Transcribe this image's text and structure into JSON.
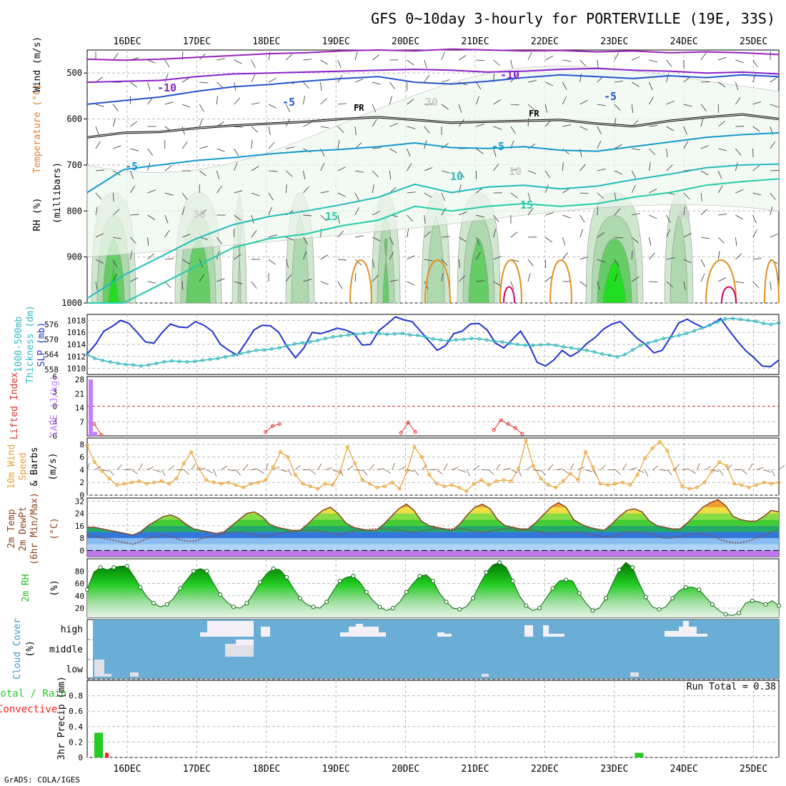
{
  "title": "GFS 0~10day 3-hourly for PORTERVILLE (19E, 33S)",
  "footer": "GrADS: COLA/IGES",
  "colors": {
    "grid": "#bbbbbb",
    "slp": "#2233cc",
    "thickness": "#33b8c0",
    "cape": "#c77dff",
    "lifted_index": "#e03030",
    "wind": "#e8a030",
    "rh": "#22bb22",
    "cloud_bg": "#6aaed6",
    "precip_total": "#22cc22",
    "precip_conv": "#ff2020"
  },
  "chart_data": [
    {
      "type": "line",
      "name": "upper-air",
      "x_dates": [
        "16DEC",
        "17DEC",
        "18DEC",
        "19DEC",
        "20DEC",
        "21DEC",
        "22DEC",
        "23DEC",
        "24DEC",
        "25DEC"
      ],
      "ylabel_parts": [
        "RH (%)",
        "Temperature (°C)",
        "Wind (m/s)",
        "(millibars)"
      ],
      "y_ticks": [
        "500",
        "600",
        "700",
        "800",
        "900",
        "1000"
      ],
      "ylim": [
        1000,
        450
      ],
      "isotherms": [
        {
          "label": "-10",
          "pressure": [
            470,
            472,
            470,
            466,
            462,
            458,
            456,
            452,
            450,
            452,
            448,
            450,
            452,
            451,
            454,
            452,
            456,
            454,
            456,
            460
          ]
        },
        {
          "label": "-10",
          "pressure": [
            520,
            518,
            516,
            508,
            502,
            500,
            498,
            496,
            494,
            492,
            494,
            498,
            496,
            492,
            490,
            494,
            496,
            500,
            498,
            502
          ]
        },
        {
          "label": "-5",
          "pressure": [
            568,
            560,
            552,
            540,
            530,
            525,
            518,
            512,
            508,
            520,
            524,
            518,
            510,
            504,
            508,
            512,
            506,
            510,
            504,
            508
          ]
        },
        {
          "label": "FR",
          "pressure": [
            640,
            630,
            628,
            620,
            614,
            610,
            606,
            600,
            596,
            602,
            608,
            606,
            604,
            602,
            610,
            616,
            604,
            596,
            590,
            600
          ]
        },
        {
          "label": "-5",
          "pressure": [
            760,
            710,
            700,
            690,
            684,
            676,
            670,
            666,
            660,
            652,
            662,
            664,
            660,
            668,
            670,
            660,
            650,
            640,
            634,
            630
          ]
        },
        {
          "label": "10",
          "pressure": [
            990,
            940,
            900,
            860,
            830,
            812,
            800,
            786,
            770,
            742,
            760,
            748,
            744,
            752,
            746,
            732,
            720,
            706,
            700,
            698
          ]
        },
        {
          "label": "15",
          "pressure": [
            1000,
            1000,
            960,
            920,
            880,
            860,
            850,
            832,
            820,
            790,
            800,
            790,
            784,
            790,
            784,
            770,
            760,
            744,
            736,
            730
          ]
        }
      ],
      "labels_shown": [
        "-10",
        "-10",
        "-5",
        "-5",
        "FR",
        "FR",
        "-5",
        "-5",
        "10",
        "10",
        "15",
        "15",
        "30",
        "30",
        "30"
      ]
    },
    {
      "type": "line",
      "name": "slp-thickness",
      "ylabel_parts": [
        "1000-500mb",
        "Thickness (dm)",
        "SLP (mb)"
      ],
      "left_ticks": [
        "558",
        "564",
        "570",
        "576"
      ],
      "right_ticks": [
        "1010",
        "1012",
        "1014",
        "1016",
        "1018"
      ],
      "series": [
        {
          "name": "SLP (mb)",
          "values": [
            1012.4,
            1014.0,
            1016.2,
            1017.0,
            1018.0,
            1017.5,
            1016.0,
            1014.4,
            1014.2,
            1016.0,
            1017.4,
            1016.9,
            1016.8,
            1017.8,
            1017.2,
            1016.2,
            1014.0,
            1013.0,
            1012.2,
            1014.2,
            1016.4,
            1017.2,
            1017.1,
            1016.0,
            1013.6,
            1011.8,
            1013.4,
            1016.0,
            1015.8,
            1016.2,
            1016.7,
            1016.4,
            1015.8,
            1013.9,
            1014.0,
            1016.3,
            1017.4,
            1018.6,
            1018.1,
            1017.8,
            1016.2,
            1014.6,
            1013.0,
            1013.8,
            1015.8,
            1016.2,
            1017.4,
            1017.5,
            1016.4,
            1014.2,
            1013.4,
            1014.8,
            1016.2,
            1014.0,
            1011.0,
            1010.4,
            1011.4,
            1013.0,
            1012.0,
            1012.8,
            1014.2,
            1015.2,
            1016.6,
            1017.4,
            1017.8,
            1016.4,
            1015.0,
            1014.0,
            1012.6,
            1013.0,
            1015.2,
            1017.6,
            1018.2,
            1017.4,
            1016.8,
            1017.4,
            1018.3,
            1016.4,
            1014.6,
            1013.0,
            1011.8,
            1010.4,
            1010.3,
            1011.4
          ]
        },
        {
          "name": "Thickness (dm)",
          "values": [
            564.0,
            562.4,
            561.6,
            561.0,
            560.4,
            560.0,
            559.8,
            559.4,
            559.8,
            560.4,
            561.0,
            561.4,
            561.2,
            561.0,
            561.2,
            561.6,
            562.0,
            562.4,
            563.0,
            563.6,
            564.4,
            565.0,
            565.6,
            565.8,
            566.2,
            566.6,
            567.4,
            568.2,
            568.6,
            569.0,
            569.6,
            570.4,
            571.0,
            571.4,
            571.8,
            572.0,
            572.4,
            572.8,
            572.4,
            572.0,
            572.2,
            572.4,
            571.8,
            571.6,
            571.0,
            570.2,
            569.8,
            569.4,
            569.8,
            570.0,
            570.4,
            570.2,
            569.8,
            569.2,
            569.0,
            568.4,
            568.0,
            567.6,
            567.6,
            567.8,
            568.0,
            567.6,
            567.0,
            566.6,
            566.0,
            565.6,
            565.0,
            564.2,
            563.6,
            563.0,
            564.0,
            565.8,
            567.6,
            568.6,
            569.4,
            570.4,
            571.0,
            571.6,
            572.4,
            573.4,
            574.6,
            575.6,
            577.0,
            578.2,
            578.4,
            578.0,
            577.6,
            577.2,
            576.4,
            576.0,
            576.6
          ]
        }
      ]
    },
    {
      "type": "bar",
      "name": "cape-li",
      "ylabel_parts": [
        "CAPE (J/kg)",
        "Lifted Index"
      ],
      "cape_ticks": [
        "7",
        "14",
        "21",
        "28"
      ],
      "li_ticks": [
        "6",
        "3",
        "0",
        "-3",
        "-6"
      ],
      "series": [
        {
          "name": "CAPE (J/kg)",
          "values": [
            28,
            2,
            0,
            0,
            0,
            0,
            0,
            0,
            0,
            0,
            0,
            0,
            0,
            0,
            0,
            0,
            0,
            0,
            0,
            0,
            0,
            0,
            0,
            0,
            0,
            0,
            0,
            0,
            0,
            0,
            0,
            0,
            0,
            0,
            0,
            0,
            0,
            0,
            0,
            0,
            0,
            0,
            0,
            0,
            0,
            0,
            0,
            0,
            0,
            0,
            0,
            0,
            0,
            0,
            0,
            0,
            0,
            0,
            0,
            0,
            0,
            0,
            0,
            0,
            0,
            0,
            0,
            0,
            0,
            0,
            0,
            0,
            0,
            0,
            0,
            0,
            0,
            0,
            0,
            0,
            0
          ]
        },
        {
          "name": "Lifted Index",
          "values": [
            null,
            3.6,
            5.8,
            null,
            null,
            null,
            null,
            null,
            null,
            null,
            null,
            null,
            null,
            null,
            null,
            null,
            null,
            null,
            null,
            null,
            null,
            null,
            null,
            null,
            null,
            5.2,
            4.0,
            3.6,
            null,
            null,
            null,
            null,
            null,
            null,
            null,
            null,
            null,
            null,
            null,
            null,
            null,
            null,
            null,
            null,
            5.4,
            3.3,
            5.2,
            null,
            null,
            null,
            null,
            null,
            null,
            null,
            null,
            null,
            null,
            4.8,
            2.8,
            3.6,
            4.4,
            5.6
          ]
        }
      ]
    },
    {
      "type": "line",
      "name": "wind10m",
      "ylabel_parts": [
        "10m Wind",
        "Speed",
        "& Barbs",
        "(m/s)"
      ],
      "y_ticks": [
        "0",
        "2",
        "4",
        "6",
        "8"
      ],
      "series": [
        {
          "name": "10m Wind Speed (m/s)",
          "values": [
            7.8,
            5.2,
            3.8,
            2.6,
            1.6,
            1.8,
            2.0,
            2.2,
            1.8,
            2.0,
            2.2,
            1.8,
            2.6,
            5.0,
            6.8,
            4.2,
            2.4,
            2.0,
            1.8,
            2.0,
            1.6,
            1.2,
            1.8,
            2.0,
            2.4,
            4.4,
            6.8,
            6.0,
            3.2,
            1.8,
            1.4,
            1.0,
            1.8,
            1.6,
            3.6,
            7.6,
            5.0,
            2.4,
            1.8,
            1.2,
            1.4,
            2.0,
            1.0,
            3.8,
            7.6,
            6.0,
            3.2,
            1.8,
            1.4,
            1.6,
            1.2,
            0.6,
            1.8,
            2.4,
            1.6,
            2.2,
            2.4,
            2.2,
            4.2,
            8.6,
            4.6,
            2.6,
            1.6,
            1.2,
            2.2,
            3.4,
            2.4,
            6.8,
            4.4,
            1.8,
            1.6,
            1.8,
            2.0,
            1.6,
            3.2,
            5.8,
            7.4,
            8.4,
            7.0,
            4.0,
            1.4,
            1.0,
            1.2,
            2.0,
            3.8,
            5.2,
            4.6,
            1.8,
            1.6,
            1.2,
            1.6,
            2.0,
            1.8,
            2.0
          ]
        }
      ]
    },
    {
      "type": "area",
      "name": "temp2m",
      "ylabel_parts": [
        "2m Temp",
        "2m DewPt",
        "(6hr Min/Max)",
        "(°C)"
      ],
      "y_ticks": [
        "0",
        "8",
        "16",
        "24",
        "32"
      ],
      "series": [
        {
          "name": "2m Temp (°C)",
          "values": [
            15,
            15,
            14,
            13,
            12,
            11,
            10,
            12,
            16,
            19,
            22,
            23,
            21,
            17,
            14,
            13,
            12,
            11,
            12,
            16,
            20,
            24,
            25,
            22,
            17,
            15,
            14,
            13,
            13,
            17,
            22,
            26,
            28,
            24,
            18,
            15,
            14,
            13,
            13,
            17,
            22,
            27,
            30,
            26,
            19,
            16,
            15,
            14,
            13,
            17,
            23,
            28,
            30,
            27,
            20,
            16,
            15,
            14,
            14,
            18,
            23,
            28,
            31,
            28,
            20,
            17,
            15,
            14,
            13,
            17,
            22,
            26,
            27,
            25,
            19,
            16,
            15,
            14,
            14,
            18,
            23,
            28,
            31,
            33,
            29,
            22,
            20,
            19,
            19,
            22,
            26,
            25
          ]
        },
        {
          "name": "2m DewPt (°C)",
          "values": [
            10,
            9,
            8,
            7,
            6,
            5,
            4,
            6,
            8,
            9,
            10,
            9,
            7,
            6,
            6,
            8,
            9,
            10,
            11,
            12,
            12,
            11,
            10,
            9,
            10,
            11,
            12,
            12,
            13,
            13,
            13,
            12,
            11,
            10,
            12,
            13,
            13,
            14,
            14,
            14,
            13,
            13,
            12,
            12,
            13,
            14,
            14,
            14,
            14,
            14,
            13,
            12,
            12,
            13,
            14,
            14,
            13,
            13,
            13,
            12,
            11,
            11,
            12,
            12,
            12,
            11,
            10,
            9,
            9,
            10,
            12,
            12,
            12,
            11,
            10,
            8,
            8,
            9,
            10,
            11,
            11,
            10,
            8,
            6,
            5,
            5,
            6,
            8,
            10,
            12,
            13
          ]
        }
      ]
    },
    {
      "type": "area",
      "name": "rh2m",
      "ylabel_parts": [
        "2m RH",
        "(%)"
      ],
      "y_ticks": [
        "20",
        "40",
        "60",
        "80"
      ],
      "series": [
        {
          "name": "2m RH (%)",
          "values": [
            50,
            78,
            86,
            82,
            86,
            88,
            88,
            72,
            54,
            38,
            28,
            22,
            26,
            36,
            52,
            66,
            80,
            84,
            80,
            60,
            42,
            30,
            22,
            20,
            28,
            44,
            62,
            76,
            84,
            82,
            70,
            52,
            36,
            26,
            22,
            20,
            30,
            48,
            64,
            70,
            72,
            62,
            46,
            32,
            22,
            16,
            20,
            30,
            46,
            60,
            72,
            74,
            64,
            44,
            30,
            20,
            18,
            22,
            36,
            58,
            78,
            90,
            94,
            86,
            64,
            40,
            24,
            16,
            20,
            36,
            52,
            64,
            66,
            64,
            44,
            28,
            16,
            20,
            36,
            60,
            82,
            94,
            86,
            60,
            38,
            22,
            18,
            22,
            36,
            48,
            54,
            54,
            50,
            38,
            26,
            16,
            10,
            8,
            12,
            28,
            32,
            30,
            26,
            32,
            24
          ]
        }
      ]
    },
    {
      "type": "heatmap",
      "name": "cloud",
      "ylabel_parts": [
        "Cloud Cover",
        "(%)"
      ],
      "row_labels": [
        "high",
        "middle",
        "low"
      ]
    },
    {
      "type": "bar",
      "name": "precip",
      "ylabel_parts": [
        "Total / Rain",
        "Convective",
        "3hr Precip (mm)"
      ],
      "y_ticks": [
        "0",
        "0.2",
        "0.4",
        "0.6",
        "0.8"
      ],
      "run_total": "Run Total = 0.38",
      "series": [
        {
          "name": "Total (mm)",
          "x_index": [
            0,
            62
          ],
          "values": [
            0.32,
            0.06
          ]
        },
        {
          "name": "Convective (mm)",
          "x_index": [
            2
          ],
          "values": [
            0.06
          ]
        }
      ]
    }
  ]
}
